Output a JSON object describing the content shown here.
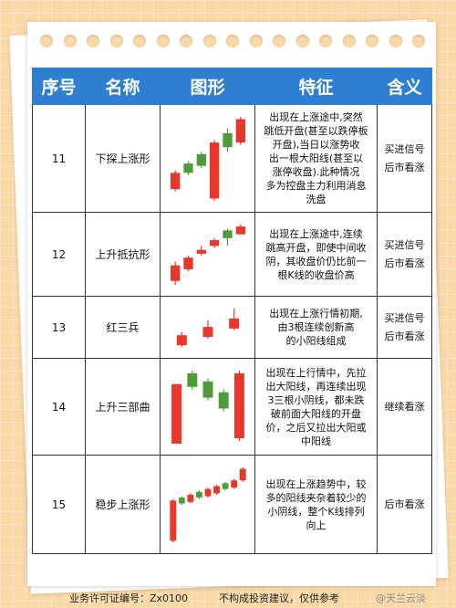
{
  "headers": [
    "序号",
    "名称",
    "图形",
    "特征",
    "含义"
  ],
  "colors": {
    "header_bg": "#2e7fd1",
    "bull": "#e8382b",
    "bear": "#4f9b3b"
  },
  "rows": [
    {
      "num": "11",
      "name": "下探上涨形",
      "feature": [
        "出现在上涨途中,突然",
        "跳低开盘(甚至以跌停板",
        "开盘),当日以涨势收",
        "出一根大阳线(甚至以",
        "涨停收盘).此种情况",
        "多为控盘主力利用消息",
        "洗盘"
      ],
      "meaning": [
        "买进信号",
        "后市看涨"
      ],
      "candles": [
        {
          "open": 40,
          "close": 47,
          "low": 39,
          "high": 48
        },
        {
          "open": 51,
          "close": 47,
          "low": 46,
          "high": 52
        },
        {
          "open": 55,
          "close": 50,
          "low": 49,
          "high": 56
        },
        {
          "open": 36,
          "close": 60,
          "low": 35,
          "high": 61
        },
        {
          "open": 64,
          "close": 58,
          "low": 56,
          "high": 66
        },
        {
          "open": 60,
          "close": 70,
          "low": 59,
          "high": 71
        }
      ]
    },
    {
      "num": "12",
      "name": "上升抵抗形",
      "feature": [
        "出现在上涨途中,连续",
        "跳高开盘，即使中间收",
        "阴，其收盘价仍比前一",
        "根K线的收盘价高"
      ],
      "meaning": [
        "买进信号",
        "后市看涨"
      ],
      "candles": [
        {
          "open": 40,
          "close": 48,
          "low": 38,
          "high": 50
        },
        {
          "open": 46,
          "close": 52,
          "low": 45,
          "high": 53
        },
        {
          "open": 54,
          "close": 56,
          "low": 53,
          "high": 58
        },
        {
          "open": 58,
          "close": 61,
          "low": 57,
          "high": 62
        },
        {
          "open": 66,
          "close": 62,
          "low": 58,
          "high": 67
        },
        {
          "open": 64,
          "close": 68,
          "low": 64,
          "high": 69
        }
      ]
    },
    {
      "num": "13",
      "name": "红三兵",
      "feature": [
        "出现在上涨行情初期,",
        "由3根连续创新高",
        "的小阳线组成"
      ],
      "meaning": [
        "买进信号",
        "后市看涨"
      ],
      "candles": [
        {
          "open": 40,
          "close": 46,
          "low": 39,
          "high": 48
        },
        {
          "open": 45,
          "close": 51,
          "low": 44,
          "high": 55
        },
        {
          "open": 50,
          "close": 56,
          "low": 49,
          "high": 62
        }
      ]
    },
    {
      "num": "14",
      "name": "上升三部曲",
      "feature": [
        "出现在上行情中，先拉",
        "出大阳线，再连续出现",
        "3三根小阴线，都未跌",
        "破前面大阳线的开盘",
        "价，之后又拉出大阳或",
        "中阳线"
      ],
      "meaning": [
        "继续看涨"
      ],
      "candles": [
        {
          "open": 40,
          "close": 62,
          "low": 40,
          "high": 62
        },
        {
          "open": 66,
          "close": 61,
          "low": 60,
          "high": 67
        },
        {
          "open": 63,
          "close": 57,
          "low": 56,
          "high": 64
        },
        {
          "open": 59,
          "close": 53,
          "low": 52,
          "high": 60
        },
        {
          "open": 42,
          "close": 66,
          "low": 41,
          "high": 67
        }
      ]
    },
    {
      "num": "15",
      "name": "稳步上涨形",
      "feature": [
        "出现在上涨趋势中，较",
        "多的阳线夹杂着较少的",
        "小阴线，整个K线排列",
        "向上"
      ],
      "meaning": [
        "后市看涨"
      ],
      "candles": [
        {
          "open": 20,
          "close": 48,
          "low": 19,
          "high": 49
        },
        {
          "open": 50,
          "close": 46,
          "low": 45,
          "high": 51
        },
        {
          "open": 47,
          "close": 52,
          "low": 46,
          "high": 53
        },
        {
          "open": 54,
          "close": 50,
          "low": 49,
          "high": 55
        },
        {
          "open": 51,
          "close": 56,
          "low": 50,
          "high": 57
        },
        {
          "open": 53,
          "close": 58,
          "low": 52,
          "high": 59
        },
        {
          "open": 60,
          "close": 56,
          "low": 55,
          "high": 61
        },
        {
          "open": 57,
          "close": 62,
          "low": 56,
          "high": 63
        },
        {
          "open": 62,
          "close": 70,
          "low": 61,
          "high": 71
        }
      ]
    }
  ],
  "footer": {
    "license": "业务许可证编号：Zx0100",
    "disclaimer": "不构成投资建议，仅供参考",
    "watermark": "@天兰云淡"
  }
}
